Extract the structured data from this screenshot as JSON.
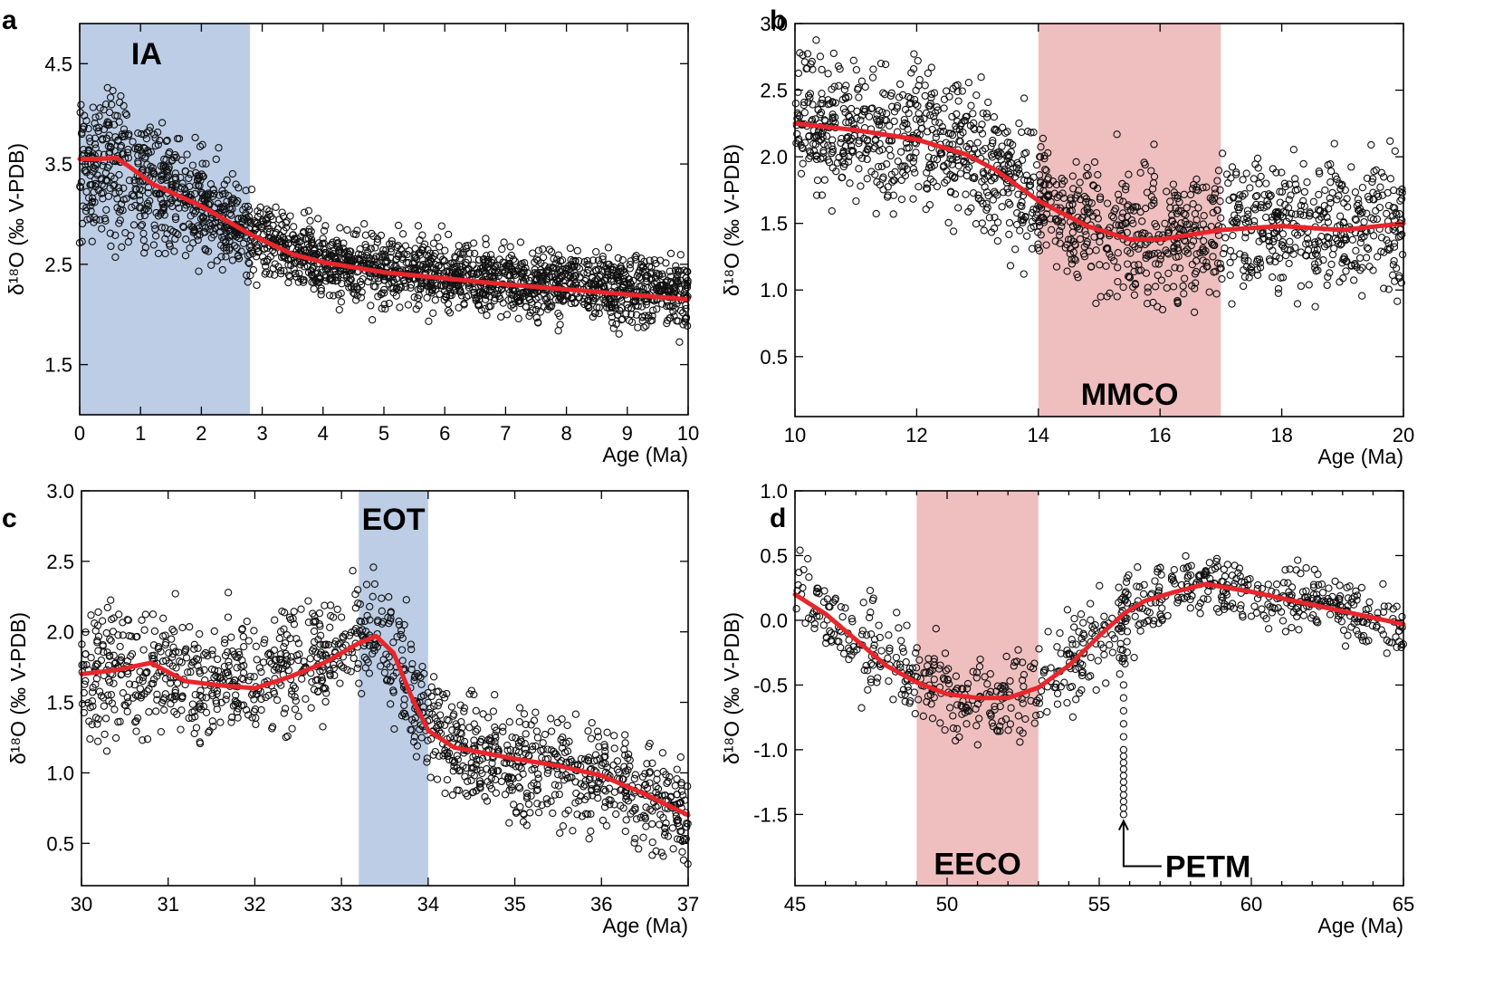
{
  "colors": {
    "band_blue": "#bccde5",
    "band_red": "#efbfbf",
    "fit_red": "#e8262c",
    "points": "#111111"
  },
  "chart_data": [
    {
      "type": "scatter",
      "panel": "a",
      "xlabel": "Age (Ma)",
      "ylabel": "δ¹⁸O (‰ V-PDB)",
      "xlim": [
        0,
        10
      ],
      "ylim": [
        1.0,
        4.9
      ],
      "xticks": [
        0,
        1,
        2,
        3,
        4,
        5,
        6,
        7,
        8,
        9,
        10
      ],
      "xminor": 0,
      "yticks": [
        1.5,
        2.5,
        3.5,
        4.5
      ],
      "ytick_labels": [
        "1.5",
        "2.5",
        "3.5",
        "4.5"
      ],
      "band": {
        "x0": 0,
        "x1": 2.8,
        "color": "band_blue",
        "label": "IA",
        "label_x": 1.1,
        "label_y": 4.6
      },
      "fit": [
        [
          0,
          3.55
        ],
        [
          0.3,
          3.55
        ],
        [
          0.6,
          3.56
        ],
        [
          0.8,
          3.48
        ],
        [
          1.2,
          3.3
        ],
        [
          2.0,
          3.08
        ],
        [
          2.8,
          2.8
        ],
        [
          3.5,
          2.6
        ],
        [
          4.0,
          2.52
        ],
        [
          5.0,
          2.42
        ],
        [
          6.0,
          2.36
        ],
        [
          7.0,
          2.3
        ],
        [
          8.0,
          2.25
        ],
        [
          9.0,
          2.2
        ],
        [
          10.0,
          2.15
        ]
      ],
      "scatter_bands": [
        [
          0,
          3.55,
          0.55
        ],
        [
          0.6,
          3.5,
          0.5
        ],
        [
          1.2,
          3.3,
          0.4
        ],
        [
          2.0,
          3.08,
          0.33
        ],
        [
          2.8,
          2.82,
          0.26
        ],
        [
          4.0,
          2.52,
          0.22
        ],
        [
          6.0,
          2.38,
          0.22
        ],
        [
          8.0,
          2.28,
          0.22
        ],
        [
          10.0,
          2.2,
          0.22
        ]
      ],
      "n_points": 2200,
      "seed": 11
    },
    {
      "type": "scatter",
      "panel": "b",
      "xlabel": "Age (Ma)",
      "ylabel": "δ¹⁸O (‰ V-PDB)",
      "xlim": [
        10,
        20
      ],
      "ylim": [
        0.05,
        3.0
      ],
      "xticks": [
        10,
        12,
        14,
        16,
        18,
        20
      ],
      "xminor": 0,
      "yticks": [
        0.5,
        1.0,
        1.5,
        2.0,
        2.5,
        3.0
      ],
      "ytick_labels": [
        "0.5",
        "1.0",
        "1.5",
        "2.0",
        "2.5",
        "3.0"
      ],
      "band": {
        "x0": 14,
        "x1": 17,
        "color": "band_red",
        "label": "MMCO",
        "label_x": 15.5,
        "label_y": 0.22
      },
      "fit": [
        [
          10,
          2.25
        ],
        [
          11,
          2.2
        ],
        [
          12,
          2.13
        ],
        [
          12.8,
          2.02
        ],
        [
          13.3,
          1.9
        ],
        [
          14,
          1.67
        ],
        [
          14.8,
          1.48
        ],
        [
          15.5,
          1.38
        ],
        [
          16,
          1.38
        ],
        [
          17,
          1.45
        ],
        [
          18,
          1.48
        ],
        [
          19,
          1.45
        ],
        [
          20,
          1.5
        ]
      ],
      "scatter_bands": [
        [
          10,
          2.25,
          0.3
        ],
        [
          12,
          2.15,
          0.32
        ],
        [
          13.3,
          1.9,
          0.33
        ],
        [
          14.5,
          1.55,
          0.33
        ],
        [
          16,
          1.35,
          0.33
        ],
        [
          17.5,
          1.5,
          0.32
        ],
        [
          20,
          1.5,
          0.32
        ]
      ],
      "n_points": 1500,
      "seed": 22
    },
    {
      "type": "scatter",
      "panel": "c",
      "xlabel": "Age (Ma)",
      "ylabel": "δ¹⁸O (‰ V-PDB)",
      "xlim": [
        30,
        37
      ],
      "ylim": [
        0.2,
        3.0
      ],
      "xticks": [
        30,
        31,
        32,
        33,
        34,
        35,
        36,
        37
      ],
      "xminor": 0,
      "yticks": [
        0.5,
        1.0,
        1.5,
        2.0,
        2.5,
        3.0
      ],
      "ytick_labels": [
        "0.5",
        "1.0",
        "1.5",
        "2.0",
        "2.5",
        "3.0"
      ],
      "band": {
        "x0": 33.2,
        "x1": 34.0,
        "color": "band_blue",
        "label": "EOT",
        "label_x": 33.6,
        "label_y": 2.8
      },
      "fit": [
        [
          30,
          1.7
        ],
        [
          30.4,
          1.73
        ],
        [
          30.8,
          1.78
        ],
        [
          31.2,
          1.65
        ],
        [
          31.6,
          1.62
        ],
        [
          32.0,
          1.6
        ],
        [
          32.4,
          1.68
        ],
        [
          32.8,
          1.78
        ],
        [
          33.2,
          1.92
        ],
        [
          33.4,
          1.97
        ],
        [
          33.6,
          1.85
        ],
        [
          33.8,
          1.55
        ],
        [
          34.0,
          1.3
        ],
        [
          34.3,
          1.18
        ],
        [
          35.0,
          1.1
        ],
        [
          35.5,
          1.05
        ],
        [
          36.0,
          0.98
        ],
        [
          36.5,
          0.85
        ],
        [
          37.0,
          0.7
        ]
      ],
      "scatter_bands": [
        [
          30,
          1.72,
          0.28
        ],
        [
          31,
          1.72,
          0.28
        ],
        [
          32,
          1.62,
          0.28
        ],
        [
          33,
          1.85,
          0.28
        ],
        [
          33.45,
          2.12,
          0.3
        ],
        [
          33.8,
          1.6,
          0.3
        ],
        [
          34.2,
          1.2,
          0.24
        ],
        [
          35,
          1.05,
          0.26
        ],
        [
          36,
          0.95,
          0.26
        ],
        [
          37,
          0.72,
          0.24
        ]
      ],
      "n_points": 1300,
      "seed": 33
    },
    {
      "type": "scatter",
      "panel": "d",
      "xlabel": "Age (Ma)",
      "ylabel": "δ¹⁸O (‰ V-PDB)",
      "xlim": [
        45,
        65
      ],
      "ylim": [
        -2.05,
        1.0
      ],
      "xticks": [
        45,
        50,
        55,
        60,
        65
      ],
      "xminor": 1,
      "yticks": [
        -1.5,
        -1.0,
        -0.5,
        0.0,
        0.5,
        1.0
      ],
      "ytick_labels": [
        "-1.5",
        "-1.0",
        "-0.5",
        "0.0",
        "0.5",
        "1.0"
      ],
      "band": {
        "x0": 49,
        "x1": 53,
        "color": "band_red",
        "label": "EECO",
        "label_x": 51,
        "label_y": -1.88
      },
      "fit": [
        [
          45,
          0.2
        ],
        [
          46,
          0.05
        ],
        [
          47,
          -0.15
        ],
        [
          48,
          -0.35
        ],
        [
          49,
          -0.48
        ],
        [
          50,
          -0.57
        ],
        [
          51,
          -0.6
        ],
        [
          52,
          -0.6
        ],
        [
          53,
          -0.52
        ],
        [
          54,
          -0.35
        ],
        [
          55,
          -0.12
        ],
        [
          55.8,
          0.05
        ],
        [
          56.5,
          0.15
        ],
        [
          57.5,
          0.22
        ],
        [
          58.5,
          0.28
        ],
        [
          60,
          0.22
        ],
        [
          62,
          0.12
        ],
        [
          64,
          0.02
        ],
        [
          65,
          -0.03
        ]
      ],
      "scatter_bands": [
        [
          45,
          0.25,
          0.22
        ],
        [
          47,
          -0.15,
          0.22
        ],
        [
          49,
          -0.48,
          0.22
        ],
        [
          51,
          -0.62,
          0.22
        ],
        [
          53,
          -0.55,
          0.22
        ],
        [
          55,
          -0.15,
          0.25
        ],
        [
          56.5,
          0.15,
          0.2
        ],
        [
          58.5,
          0.32,
          0.15
        ],
        [
          60.5,
          0.2,
          0.15
        ],
        [
          63,
          0.1,
          0.15
        ],
        [
          65,
          -0.1,
          0.2
        ]
      ],
      "n_points": 750,
      "seed": 44,
      "spike": {
        "x": 55.8,
        "y_values": [
          -0.5,
          -0.6,
          -0.7,
          -0.8,
          -0.9,
          -1.0,
          -1.05,
          -1.1,
          -1.15,
          -1.2,
          -1.25,
          -1.3,
          -1.35,
          -1.4,
          -1.45,
          -1.5
        ],
        "cluster": [
          [
            55.8,
            0.05
          ],
          [
            55.9,
            0.2
          ],
          [
            55.7,
            0.15
          ],
          [
            55.85,
            -0.1
          ],
          [
            55.75,
            -0.3
          ]
        ]
      },
      "annotation": {
        "label": "PETM",
        "x": 55.8,
        "y_tip": -1.55,
        "y_elbow": -1.9
      }
    }
  ]
}
